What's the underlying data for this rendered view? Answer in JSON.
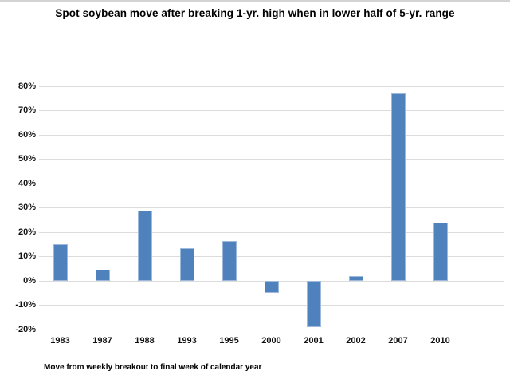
{
  "page": {
    "title": "Spot soybean move after breaking 1-yr. high when in lower half of 5-yr. range",
    "footnote": "Move from weekly breakout to final week of calendar year"
  },
  "chart_data": {
    "type": "bar",
    "title": "Spot soybean move after breaking 1-yr. high when in lower half of 5-yr. range",
    "categories": [
      "1983",
      "1987",
      "1988",
      "1993",
      "1995",
      "2000",
      "2001",
      "2002",
      "2007",
      "2010"
    ],
    "values": [
      15,
      4.5,
      29,
      13.5,
      16.5,
      -5,
      -19,
      2,
      77,
      24
    ],
    "xlabel": "",
    "ylabel": "",
    "ylim": [
      -20,
      80
    ],
    "ytick_step": 10,
    "ytick_labels": [
      "-20%",
      "-10%",
      "0%",
      "10%",
      "20%",
      "30%",
      "40%",
      "50%",
      "60%",
      "70%",
      "80%"
    ],
    "grid": true,
    "legend": false,
    "footnote": "Move from weekly breakout to final week of calendar year",
    "colors": {
      "bar_fill": "#4f81bd",
      "bar_border": "#9db9dc",
      "gridline": "#dcdcdc",
      "text": "#111111"
    }
  }
}
